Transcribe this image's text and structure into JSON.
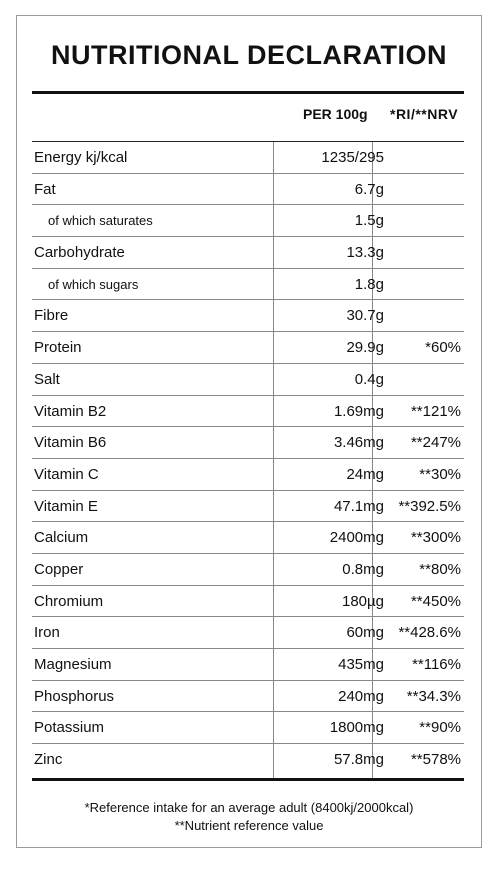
{
  "title": "NUTRITIONAL DECLARATION",
  "headers": {
    "per100": "PER 100g",
    "ri": "*RI/**NRV"
  },
  "rows": [
    {
      "name": "Energy kj/kcal",
      "value": "1235/295",
      "ri": "",
      "sub": false
    },
    {
      "name": "Fat",
      "value": "6.7g",
      "ri": "",
      "sub": false
    },
    {
      "name": "of which saturates",
      "value": "1.5g",
      "ri": "",
      "sub": true
    },
    {
      "name": "Carbohydrate",
      "value": "13.3g",
      "ri": "",
      "sub": false
    },
    {
      "name": "of which sugars",
      "value": "1.8g",
      "ri": "",
      "sub": true
    },
    {
      "name": "Fibre",
      "value": "30.7g",
      "ri": "",
      "sub": false
    },
    {
      "name": "Protein",
      "value": "29.9g",
      "ri": "*60%",
      "sub": false
    },
    {
      "name": "Salt",
      "value": "0.4g",
      "ri": "",
      "sub": false
    },
    {
      "name": "Vitamin B2",
      "value": "1.69mg",
      "ri": "**121%",
      "sub": false
    },
    {
      "name": "Vitamin B6",
      "value": "3.46mg",
      "ri": "**247%",
      "sub": false
    },
    {
      "name": "Vitamin C",
      "value": "24mg",
      "ri": "**30%",
      "sub": false
    },
    {
      "name": "Vitamin E",
      "value": "47.1mg",
      "ri": "**392.5%",
      "sub": false
    },
    {
      "name": "Calcium",
      "value": "2400mg",
      "ri": "**300%",
      "sub": false
    },
    {
      "name": "Copper",
      "value": "0.8mg",
      "ri": "**80%",
      "sub": false
    },
    {
      "name": "Chromium",
      "value": "180µg",
      "ri": "**450%",
      "sub": false
    },
    {
      "name": "Iron",
      "value": "60mg",
      "ri": "**428.6%",
      "sub": false
    },
    {
      "name": "Magnesium",
      "value": "435mg",
      "ri": "**116%",
      "sub": false
    },
    {
      "name": "Phosphorus",
      "value": "240mg",
      "ri": "**34.3%",
      "sub": false
    },
    {
      "name": "Potassium",
      "value": "1800mg",
      "ri": "**90%",
      "sub": false
    },
    {
      "name": "Zinc",
      "value": "57.8mg",
      "ri": "**578%",
      "sub": false
    }
  ],
  "footnotes": {
    "ri": "*Reference intake for an average adult (8400kj/2000kcal)",
    "nrv": "**Nutrient reference value"
  }
}
